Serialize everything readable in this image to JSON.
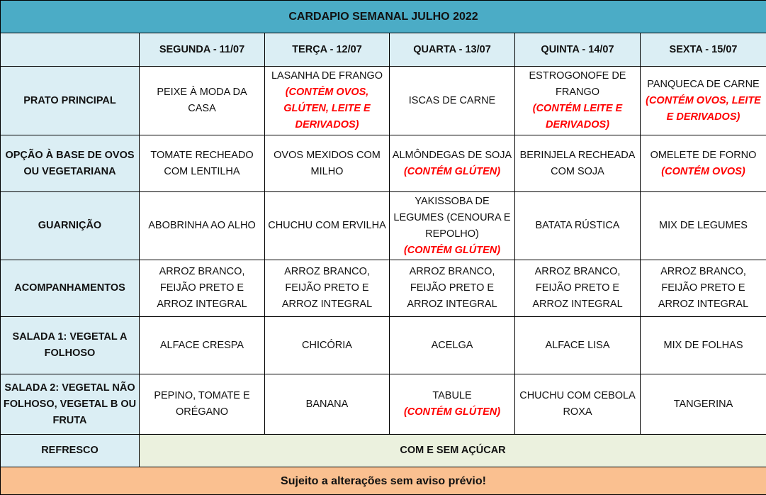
{
  "title": "CARDAPIO SEMANAL JULHO 2022",
  "days": [
    "SEGUNDA - 11/07",
    "TERÇA - 12/07",
    "QUARTA - 13/07",
    "QUINTA - 14/07",
    "SEXTA - 15/07"
  ],
  "rows": [
    {
      "label": "PRATO PRINCIPAL",
      "cells": [
        {
          "text": "PEIXE À MODA DA CASA"
        },
        {
          "text": "LASANHA DE FRANGO",
          "allergen": "(CONTÉM OVOS, GLÚTEN, LEITE E DERIVADOS)"
        },
        {
          "text": "ISCAS DE CARNE"
        },
        {
          "text": "ESTROGONOFE DE FRANGO",
          "allergen": "(CONTÉM LEITE E DERIVADOS)"
        },
        {
          "text": "PANQUECA DE CARNE",
          "allergen": "(CONTÉM OVOS, LEITE E DERIVADOS)"
        }
      ]
    },
    {
      "label": "OPÇÃO À BASE DE OVOS OU VEGETARIANA",
      "cells": [
        {
          "text": "TOMATE RECHEADO COM LENTILHA"
        },
        {
          "text": "OVOS MEXIDOS COM MILHO"
        },
        {
          "text": "ALMÔNDEGAS DE SOJA",
          "allergen": "(CONTÉM GLÚTEN)"
        },
        {
          "text": "BERINJELA RECHEADA COM SOJA"
        },
        {
          "text": "OMELETE DE FORNO",
          "allergen": "(CONTÉM OVOS)"
        }
      ]
    },
    {
      "label": "GUARNIÇÃO",
      "cells": [
        {
          "text": "ABOBRINHA AO ALHO"
        },
        {
          "text": "CHUCHU COM ERVILHA"
        },
        {
          "text": "YAKISSOBA DE LEGUMES (CENOURA E REPOLHO)",
          "allergen": "(CONTÉM GLÚTEN)"
        },
        {
          "text": "BATATA RÚSTICA"
        },
        {
          "text": "MIX DE LEGUMES"
        }
      ]
    },
    {
      "label": "ACOMPANHAMENTOS",
      "cells": [
        {
          "text": "ARROZ BRANCO, FEIJÃO PRETO E ARROZ INTEGRAL"
        },
        {
          "text": "ARROZ BRANCO, FEIJÃO PRETO E ARROZ INTEGRAL"
        },
        {
          "text": "ARROZ BRANCO, FEIJÃO PRETO E ARROZ INTEGRAL"
        },
        {
          "text": "ARROZ BRANCO, FEIJÃO PRETO E ARROZ INTEGRAL"
        },
        {
          "text": "ARROZ BRANCO, FEIJÃO PRETO E ARROZ INTEGRAL"
        }
      ]
    },
    {
      "label": "SALADA 1: VEGETAL A FOLHOSO",
      "cells": [
        {
          "text": "ALFACE CRESPA"
        },
        {
          "text": "CHICÓRIA"
        },
        {
          "text": "ACELGA"
        },
        {
          "text": "ALFACE LISA"
        },
        {
          "text": "MIX DE FOLHAS"
        }
      ]
    },
    {
      "label": "SALADA 2: VEGETAL NÃO FOLHOSO, VEGETAL B OU FRUTA",
      "cells": [
        {
          "text": "PEPINO, TOMATE E ORÉGANO"
        },
        {
          "text": "BANANA"
        },
        {
          "text": "TABULE",
          "allergen": "(CONTÉM GLÚTEN)"
        },
        {
          "text": "CHUCHU COM CEBOLA ROXA"
        },
        {
          "text": "TANGERINA"
        }
      ]
    }
  ],
  "refresco": {
    "label": "REFRESCO",
    "value": "COM E SEM AÇÚCAR"
  },
  "footer": "Sujeito a alterações sem aviso prévio!",
  "colors": {
    "title_bg": "#4bacc6",
    "header_bg": "#dbeef4",
    "refresco_bg": "#ebf1de",
    "footer_bg": "#fac090",
    "allergen": "#ff0000"
  }
}
